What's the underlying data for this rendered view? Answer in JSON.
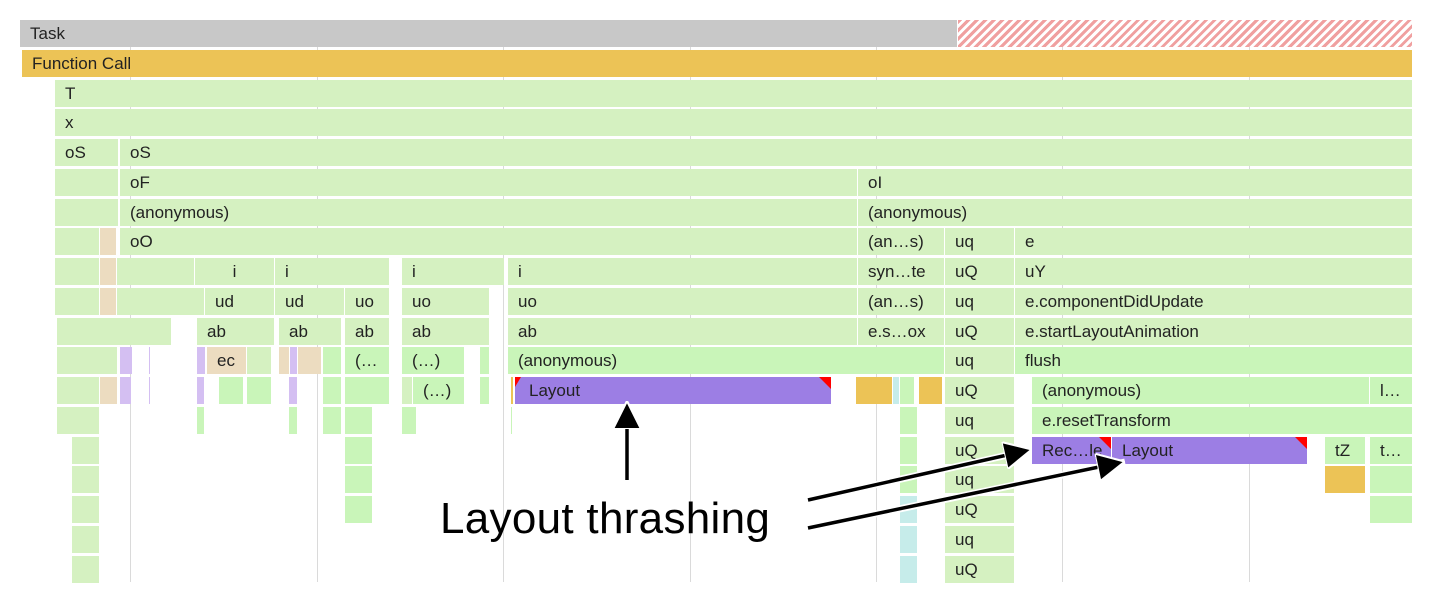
{
  "colors": {
    "task": "#c8c8c8",
    "task_long": "#f0a0a0",
    "function_call": "#ecc356",
    "script": "#d5f1c1",
    "script_bright": "#c9f5b9",
    "layout": "#9c7ee4",
    "layout_light": "#d4bff2",
    "gc": "#ecdcc0",
    "cyan": "#c6ecea",
    "warning": "#ff0000"
  },
  "rows": {
    "r0": [
      "Task"
    ],
    "r1": [
      "Function Call"
    ],
    "r2": [
      "T"
    ],
    "r3": [
      "x"
    ],
    "r4": [
      "oS",
      "oS"
    ],
    "r5": [
      "oF",
      "oI"
    ],
    "r6": [
      "(anonymous)",
      "(anonymous)"
    ],
    "r7": [
      "oO",
      "(an…s)",
      "uq",
      "e"
    ],
    "r8": [
      "i",
      "i",
      "i",
      "i",
      "syn…te",
      "uQ",
      "uY"
    ],
    "r9": [
      "ud",
      "ud",
      "uo",
      "uo",
      "uo",
      "(an…s)",
      "uq",
      "e.componentDidUpdate"
    ],
    "r10": [
      "ab",
      "ab",
      "ab",
      "ab",
      "ab",
      "e.s…ox",
      "uQ",
      "e.startLayoutAnimation"
    ],
    "r11": [
      "ec",
      "(…",
      "(…)",
      "(anonymous)",
      "uq",
      "flush"
    ],
    "r12": [
      "(…)",
      "Layout",
      "uQ",
      "(anonymous)",
      "l…"
    ],
    "r13": [
      "uq",
      "e.resetTransform"
    ],
    "r14": [
      "uQ",
      "Rec…le",
      "Layout",
      "tZ",
      "t…"
    ],
    "r15": [
      "uq"
    ],
    "r16": [
      "uQ"
    ],
    "r17": [
      "uq"
    ],
    "r18": [
      "uQ"
    ]
  },
  "annotation": {
    "text": "Layout thrashing"
  }
}
